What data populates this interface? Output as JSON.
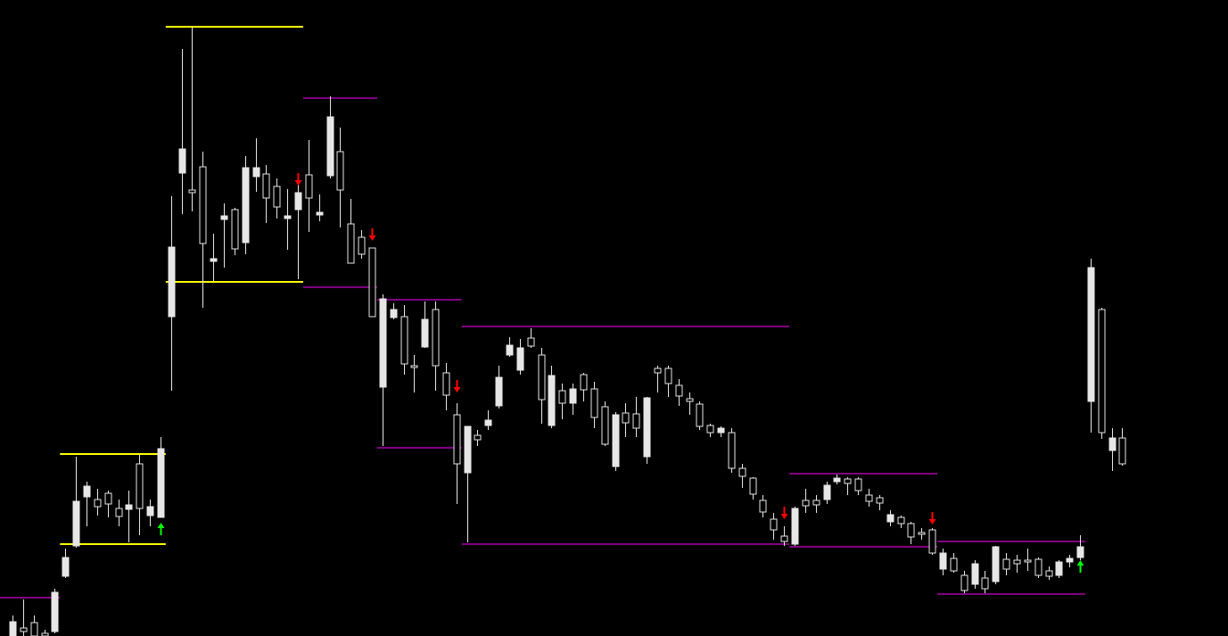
{
  "chart_data": {
    "type": "candlestick",
    "xlim": [
      -1.18,
      115
    ],
    "ylim": [
      0,
      713
    ],
    "background": "#000000",
    "candle_color": "#e6e6e6",
    "open": [
      16,
      5,
      0,
      0,
      49,
      88,
      151,
      168,
      145,
      148,
      134,
      147,
      143,
      145,
      210,
      436,
      546,
      497,
      440,
      423,
      471,
      434,
      525,
      525,
      491,
      481,
      471,
      497,
      491,
      475,
      582,
      500,
      418,
      428,
      358,
      378,
      366,
      305,
      301,
      355,
      303,
      270,
      193,
      235,
      220,
      242,
      290,
      326,
      323,
      325,
      265,
      292,
      261,
      277,
      276,
      245,
      215,
      248,
      239,
      233,
      267,
      295,
      283,
      269,
      263,
      235,
      228,
      233,
      188,
      179,
      159,
      139,
      119,
      106,
      143,
      146,
      147,
      169,
      177,
      171,
      163,
      151,
      149,
      136,
      126,
      111,
      114,
      93,
      93,
      73,
      51,
      81,
      53,
      100,
      75,
      81,
      83,
      68,
      67,
      83,
      87,
      100,
      413,
      228,
      222,
      193
    ],
    "high": [
      23,
      41,
      23,
      7,
      53,
      98,
      201,
      173,
      165,
      163,
      153,
      163,
      203,
      153,
      223,
      493,
      658,
      683,
      543,
      451,
      485,
      480,
      538,
      558,
      528,
      513,
      501,
      515,
      556,
      495,
      605,
      570,
      490,
      455,
      435,
      383,
      373,
      371,
      315,
      375,
      375,
      306,
      261,
      235,
      231,
      253,
      303,
      335,
      333,
      345,
      323,
      303,
      283,
      283,
      295,
      285,
      263,
      251,
      261,
      268,
      268,
      303,
      303,
      288,
      273,
      263,
      238,
      235,
      233,
      193,
      178,
      158,
      138,
      123,
      145,
      165,
      158,
      173,
      181,
      178,
      178,
      165,
      158,
      141,
      135,
      128,
      121,
      121,
      98,
      93,
      73,
      85,
      73,
      101,
      93,
      91,
      98,
      88,
      78,
      85,
      91,
      113,
      423,
      368,
      233,
      233
    ],
    "low": [
      0,
      0,
      0,
      0,
      3,
      65,
      99,
      123,
      135,
      133,
      123,
      105,
      113,
      123,
      133,
      275,
      473,
      476,
      368,
      398,
      413,
      427,
      428,
      498,
      463,
      468,
      433,
      400,
      453,
      465,
      513,
      458,
      418,
      423,
      358,
      213,
      355,
      293,
      273,
      323,
      275,
      253,
      148,
      105,
      213,
      231,
      255,
      313,
      293,
      323,
      238,
      233,
      243,
      248,
      263,
      233,
      213,
      185,
      223,
      223,
      193,
      273,
      268,
      258,
      248,
      231,
      223,
      223,
      183,
      166,
      153,
      133,
      108,
      101,
      101,
      138,
      138,
      148,
      170,
      158,
      158,
      145,
      141,
      123,
      121,
      103,
      108,
      91,
      68,
      71,
      48,
      53,
      48,
      58,
      68,
      71,
      73,
      65,
      63,
      65,
      77,
      85,
      228,
      221,
      185,
      191
    ],
    "close": [
      0,
      9,
      15,
      3,
      5,
      67,
      101,
      156,
      153,
      160,
      143,
      142,
      193,
      135,
      133,
      358,
      519,
      500,
      526,
      420,
      467,
      478,
      441,
      515,
      518,
      504,
      468,
      478,
      517,
      472,
      516,
      543,
      462,
      447,
      435,
      279,
      357,
      358,
      303,
      324,
      366,
      295,
      248,
      183,
      225,
      236,
      258,
      315,
      298,
      334,
      315,
      236,
      275,
      261,
      293,
      277,
      257,
      190,
      250,
      249,
      201,
      300,
      300,
      281,
      266,
      260,
      236,
      228,
      228,
      188,
      177,
      152,
      131,
      112,
      103,
      152,
      152,
      153,
      173,
      176,
      176,
      158,
      155,
      128,
      133,
      126,
      116,
      119,
      75,
      87,
      68,
      58,
      65,
      61,
      86,
      85,
      85,
      86,
      73,
      68,
      83,
      88,
      263,
      366,
      208,
      222
    ],
    "levels": [
      {
        "value": 683,
        "from": 14.5,
        "to": 27.5,
        "color": "#ffff00"
      },
      {
        "value": 397,
        "from": 14.5,
        "to": 27.5,
        "color": "#ffff00"
      },
      {
        "value": 204,
        "from": 4.5,
        "to": 14.5,
        "color": "#ffff00"
      },
      {
        "value": 103,
        "from": 4.5,
        "to": 14.5,
        "color": "#ffff00"
      },
      {
        "value": 43,
        "from": -1.2,
        "to": 4.5,
        "color": "#800080"
      },
      {
        "value": 603,
        "from": 27.5,
        "to": 34.5,
        "color": "#800080"
      },
      {
        "value": 391,
        "from": 27.5,
        "to": 34.5,
        "color": "#800080"
      },
      {
        "value": 377,
        "from": 34.5,
        "to": 42.5,
        "color": "#800080"
      },
      {
        "value": 211,
        "from": 34.5,
        "to": 42.5,
        "color": "#800080"
      },
      {
        "value": 347,
        "from": 42.5,
        "to": 73.5,
        "color": "#800080"
      },
      {
        "value": 103,
        "from": 42.5,
        "to": 73.5,
        "color": "#800080"
      },
      {
        "value": 182,
        "from": 73.5,
        "to": 87.5,
        "color": "#800080"
      },
      {
        "value": 100,
        "from": 73.5,
        "to": 87.5,
        "color": "#800080"
      },
      {
        "value": 106,
        "from": 87.5,
        "to": 101.5,
        "color": "#800080"
      },
      {
        "value": 47,
        "from": 87.5,
        "to": 101.5,
        "color": "#800080"
      }
    ],
    "down_arrows": {
      "color": "#ff0000",
      "values": [
        null,
        null,
        null,
        null,
        null,
        null,
        null,
        null,
        null,
        null,
        null,
        null,
        null,
        null,
        null,
        null,
        null,
        null,
        null,
        null,
        null,
        null,
        null,
        null,
        null,
        null,
        null,
        505,
        null,
        null,
        null,
        null,
        null,
        null,
        443,
        null,
        null,
        null,
        null,
        null,
        null,
        null,
        273,
        null,
        null,
        null,
        null,
        null,
        null,
        null,
        null,
        null,
        null,
        null,
        null,
        null,
        null,
        null,
        null,
        null,
        null,
        null,
        null,
        null,
        null,
        null,
        null,
        null,
        null,
        null,
        null,
        null,
        null,
        131,
        null,
        null,
        null,
        null,
        null,
        null,
        null,
        null,
        null,
        null,
        null,
        null,
        null,
        125,
        null,
        null,
        null,
        null,
        null,
        null,
        null,
        null,
        null,
        null,
        null,
        null,
        null,
        null,
        null,
        null,
        null,
        null
      ]
    },
    "up_arrows": {
      "color": "#00ff00",
      "values": [
        null,
        null,
        null,
        null,
        null,
        null,
        null,
        null,
        null,
        null,
        null,
        null,
        null,
        null,
        127,
        null,
        null,
        null,
        null,
        null,
        null,
        null,
        null,
        null,
        null,
        null,
        null,
        null,
        null,
        null,
        null,
        null,
        null,
        null,
        null,
        null,
        null,
        null,
        null,
        null,
        null,
        null,
        null,
        null,
        null,
        null,
        null,
        null,
        null,
        null,
        null,
        null,
        null,
        null,
        null,
        null,
        null,
        null,
        null,
        null,
        null,
        null,
        null,
        null,
        null,
        null,
        null,
        null,
        null,
        null,
        null,
        null,
        null,
        null,
        null,
        null,
        null,
        null,
        null,
        null,
        null,
        null,
        null,
        null,
        null,
        null,
        null,
        null,
        null,
        null,
        null,
        null,
        null,
        null,
        null,
        null,
        null,
        null,
        null,
        null,
        null,
        85,
        null,
        null,
        null,
        null
      ]
    }
  }
}
